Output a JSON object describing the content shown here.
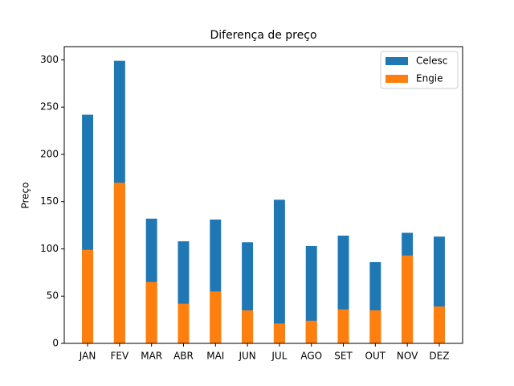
{
  "chart_data": {
    "type": "bar",
    "title": "Diferença de preço",
    "y_label": "Preço",
    "categories": [
      "JAN",
      "FEV",
      "MAR",
      "ABR",
      "MAI",
      "JUN",
      "JUL",
      "AGO",
      "SET",
      "OUT",
      "NOV",
      "DEZ"
    ],
    "series": [
      {
        "name": "Celesc",
        "color": "#1f77b4",
        "values": [
          242,
          299,
          132,
          108,
          131,
          107,
          152,
          103,
          114,
          86,
          117,
          113
        ]
      },
      {
        "name": "Engie",
        "color": "#ff7f0e",
        "values": [
          99,
          170,
          65,
          42,
          55,
          35,
          21,
          24,
          36,
          35,
          93,
          39
        ]
      }
    ],
    "ylim": [
      0,
      314
    ],
    "yticks": [
      0,
      50,
      100,
      150,
      200,
      250,
      300
    ],
    "legend": "upper right"
  }
}
